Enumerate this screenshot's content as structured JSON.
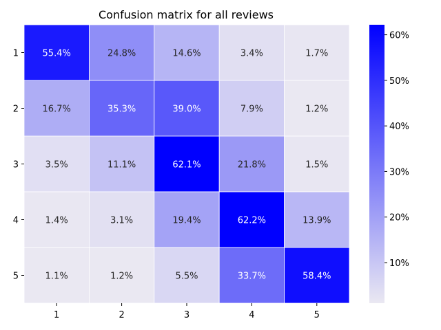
{
  "chart_data": {
    "type": "heatmap",
    "title": "Confusion matrix for all reviews",
    "row_labels": [
      "1",
      "2",
      "3",
      "4",
      "5"
    ],
    "col_labels": [
      "1",
      "2",
      "3",
      "4",
      "5"
    ],
    "values": [
      [
        55.4,
        24.8,
        14.6,
        3.4,
        1.7
      ],
      [
        16.7,
        35.3,
        39.0,
        7.9,
        1.2
      ],
      [
        3.5,
        11.1,
        62.1,
        21.8,
        1.5
      ],
      [
        1.4,
        3.1,
        19.4,
        62.2,
        13.9
      ],
      [
        1.1,
        1.2,
        5.5,
        33.7,
        58.4
      ]
    ],
    "cell_labels": [
      [
        "55.4%",
        "24.8%",
        "14.6%",
        "3.4%",
        "1.7%"
      ],
      [
        "16.7%",
        "35.3%",
        "39.0%",
        "7.9%",
        "1.2%"
      ],
      [
        "3.5%",
        "11.1%",
        "62.1%",
        "21.8%",
        "1.5%"
      ],
      [
        "1.4%",
        "3.1%",
        "19.4%",
        "62.2%",
        "13.9%"
      ],
      [
        "1.1%",
        "1.2%",
        "5.5%",
        "33.7%",
        "58.4%"
      ]
    ],
    "value_unit": "%",
    "color_range": [
      1.1,
      62.2
    ],
    "colormap": [
      "#eae8f2",
      "#0000ff"
    ],
    "colorbar": {
      "ticks": [
        10,
        20,
        30,
        40,
        50,
        60
      ],
      "tick_labels": [
        "10%",
        "20%",
        "30%",
        "40%",
        "50%",
        "60%"
      ],
      "placement": "right"
    },
    "xlabel": "",
    "ylabel": ""
  }
}
